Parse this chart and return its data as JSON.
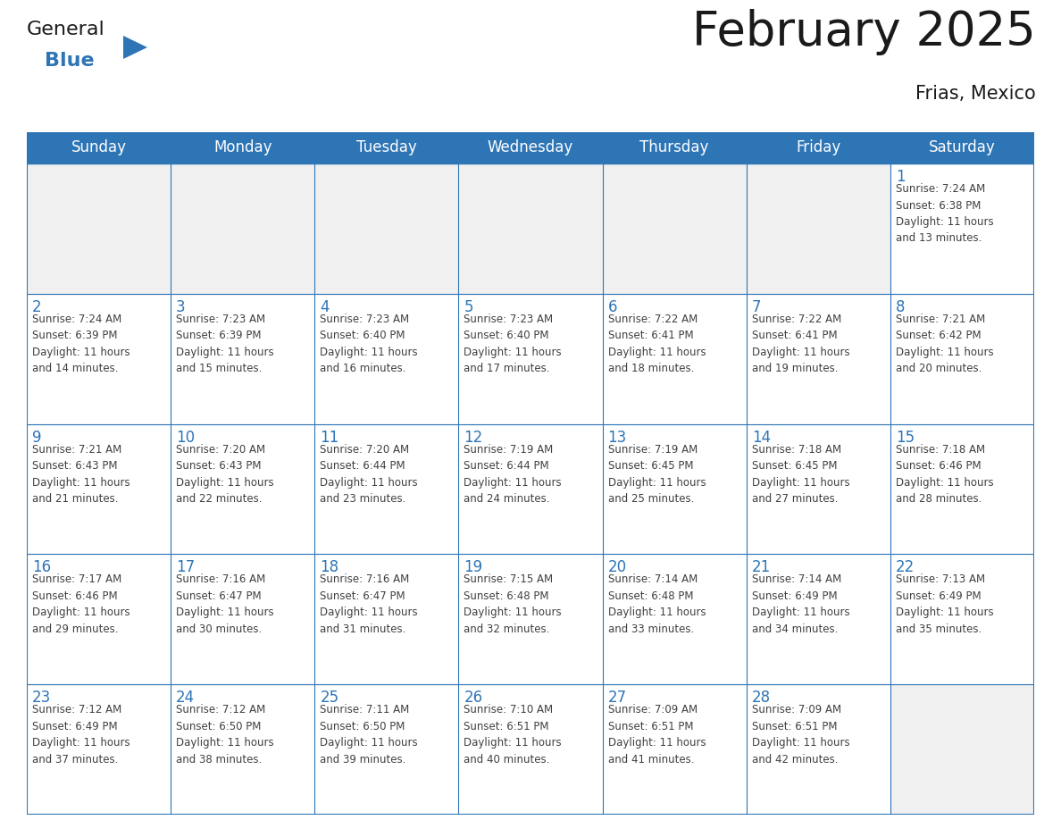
{
  "title": "February 2025",
  "subtitle": "Frias, Mexico",
  "header_bg": "#2e75b6",
  "header_text_color": "#ffffff",
  "cell_bg_empty": "#f0f0f0",
  "cell_bg_filled": "#ffffff",
  "cell_border_color": "#2e75b6",
  "day_number_color": "#2e75b6",
  "cell_text_color": "#404040",
  "days_of_week": [
    "Sunday",
    "Monday",
    "Tuesday",
    "Wednesday",
    "Thursday",
    "Friday",
    "Saturday"
  ],
  "logo_general_color": "#1a1a1a",
  "logo_blue_color": "#2e75b6",
  "calendar_data": [
    [
      null,
      null,
      null,
      null,
      null,
      null,
      1
    ],
    [
      2,
      3,
      4,
      5,
      6,
      7,
      8
    ],
    [
      9,
      10,
      11,
      12,
      13,
      14,
      15
    ],
    [
      16,
      17,
      18,
      19,
      20,
      21,
      22
    ],
    [
      23,
      24,
      25,
      26,
      27,
      28,
      null
    ]
  ],
  "sunrise_data": {
    "1": "7:24 AM",
    "2": "7:24 AM",
    "3": "7:23 AM",
    "4": "7:23 AM",
    "5": "7:23 AM",
    "6": "7:22 AM",
    "7": "7:22 AM",
    "8": "7:21 AM",
    "9": "7:21 AM",
    "10": "7:20 AM",
    "11": "7:20 AM",
    "12": "7:19 AM",
    "13": "7:19 AM",
    "14": "7:18 AM",
    "15": "7:18 AM",
    "16": "7:17 AM",
    "17": "7:16 AM",
    "18": "7:16 AM",
    "19": "7:15 AM",
    "20": "7:14 AM",
    "21": "7:14 AM",
    "22": "7:13 AM",
    "23": "7:12 AM",
    "24": "7:12 AM",
    "25": "7:11 AM",
    "26": "7:10 AM",
    "27": "7:09 AM",
    "28": "7:09 AM"
  },
  "sunset_data": {
    "1": "6:38 PM",
    "2": "6:39 PM",
    "3": "6:39 PM",
    "4": "6:40 PM",
    "5": "6:40 PM",
    "6": "6:41 PM",
    "7": "6:41 PM",
    "8": "6:42 PM",
    "9": "6:43 PM",
    "10": "6:43 PM",
    "11": "6:44 PM",
    "12": "6:44 PM",
    "13": "6:45 PM",
    "14": "6:45 PM",
    "15": "6:46 PM",
    "16": "6:46 PM",
    "17": "6:47 PM",
    "18": "6:47 PM",
    "19": "6:48 PM",
    "20": "6:48 PM",
    "21": "6:49 PM",
    "22": "6:49 PM",
    "23": "6:49 PM",
    "24": "6:50 PM",
    "25": "6:50 PM",
    "26": "6:51 PM",
    "27": "6:51 PM",
    "28": "6:51 PM"
  },
  "daylight_data": {
    "1": "11 hours and 13 minutes.",
    "2": "11 hours and 14 minutes.",
    "3": "11 hours and 15 minutes.",
    "4": "11 hours and 16 minutes.",
    "5": "11 hours and 17 minutes.",
    "6": "11 hours and 18 minutes.",
    "7": "11 hours and 19 minutes.",
    "8": "11 hours and 20 minutes.",
    "9": "11 hours and 21 minutes.",
    "10": "11 hours and 22 minutes.",
    "11": "11 hours and 23 minutes.",
    "12": "11 hours and 24 minutes.",
    "13": "11 hours and 25 minutes.",
    "14": "11 hours and 27 minutes.",
    "15": "11 hours and 28 minutes.",
    "16": "11 hours and 29 minutes.",
    "17": "11 hours and 30 minutes.",
    "18": "11 hours and 31 minutes.",
    "19": "11 hours and 32 minutes.",
    "20": "11 hours and 33 minutes.",
    "21": "11 hours and 34 minutes.",
    "22": "11 hours and 35 minutes.",
    "23": "11 hours and 37 minutes.",
    "24": "11 hours and 38 minutes.",
    "25": "11 hours and 39 minutes.",
    "26": "11 hours and 40 minutes.",
    "27": "11 hours and 41 minutes.",
    "28": "11 hours and 42 minutes."
  }
}
